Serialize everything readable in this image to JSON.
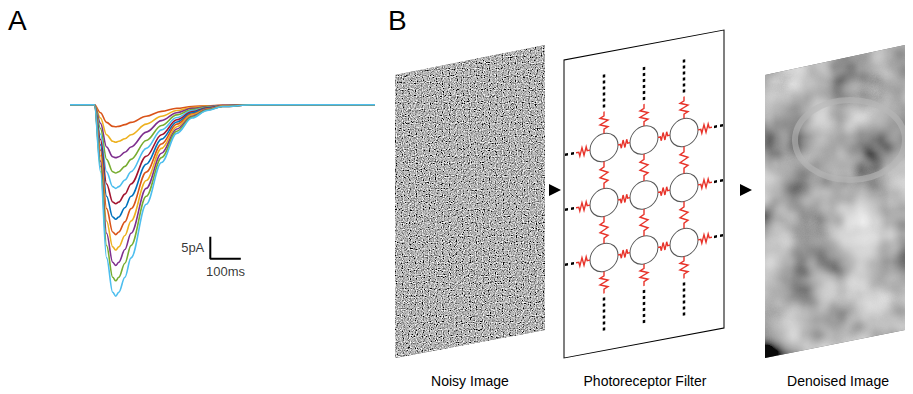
{
  "panel_labels": [
    "A",
    "B"
  ],
  "chart_data": {
    "type": "line",
    "tick_labels": false,
    "grid": false,
    "xlim": [
      0,
      1000
    ],
    "ylim": [
      -48,
      2
    ],
    "x": [
      0,
      80,
      100,
      120,
      140,
      150,
      160,
      180,
      200,
      250,
      300,
      350,
      400,
      450,
      500,
      600,
      1000
    ],
    "scale_bar": {
      "x": 100,
      "x_label": "100ms",
      "y": 5,
      "y_label": "5pA"
    },
    "series": [
      {
        "color": "#D95319",
        "values": [
          0,
          0,
          -1.8,
          -4,
          -4.9,
          -5,
          -4.9,
          -4.5,
          -4,
          -2.6,
          -1.5,
          -0.8,
          -0.4,
          -0.2,
          -0.1,
          0,
          0
        ]
      },
      {
        "color": "#EDB120",
        "values": [
          0,
          0,
          -3.0,
          -6.8,
          -8.3,
          -8.5,
          -8.3,
          -7.7,
          -6.8,
          -4.4,
          -2.6,
          -1.3,
          -0.6,
          -0.3,
          -0.1,
          0,
          0
        ]
      },
      {
        "color": "#7E2F8E",
        "values": [
          0,
          0,
          -4.2,
          -9.6,
          -11.8,
          -12,
          -11.8,
          -10.8,
          -9.6,
          -6.2,
          -3.6,
          -1.8,
          -0.8,
          -0.4,
          -0.1,
          0,
          0
        ]
      },
      {
        "color": "#77AC30",
        "values": [
          0,
          0,
          -5.4,
          -12.4,
          -15.2,
          -15.5,
          -15.2,
          -14.0,
          -12.4,
          -8.1,
          -4.7,
          -2.3,
          -1.1,
          -0.5,
          -0.2,
          0,
          0
        ]
      },
      {
        "color": "#4DBEEE",
        "values": [
          0,
          0,
          -6.7,
          -15.2,
          -18.6,
          -19,
          -18.6,
          -17.1,
          -15.2,
          -9.9,
          -5.7,
          -2.9,
          -1.3,
          -0.6,
          -0.2,
          0,
          0
        ]
      },
      {
        "color": "#A2142F",
        "values": [
          0,
          0,
          -7.9,
          -18,
          -22.1,
          -22.5,
          -22.1,
          -20.3,
          -18,
          -11.7,
          -6.8,
          -3.4,
          -1.6,
          -0.7,
          -0.2,
          0,
          0
        ]
      },
      {
        "color": "#0072BD",
        "values": [
          0,
          0,
          -9.1,
          -20.8,
          -25.5,
          -26,
          -25.5,
          -23.4,
          -20.8,
          -13.5,
          -7.8,
          -3.9,
          -1.8,
          -0.8,
          -0.3,
          0,
          0
        ]
      },
      {
        "color": "#D95319",
        "values": [
          0,
          0,
          -10.3,
          -23.6,
          -28.9,
          -29.5,
          -28.9,
          -26.6,
          -23.6,
          -15.3,
          -8.9,
          -4.4,
          -2.1,
          -0.9,
          -0.3,
          0,
          0
        ]
      },
      {
        "color": "#EDB120",
        "values": [
          0,
          0,
          -11.6,
          -26.4,
          -32.3,
          -33,
          -32.3,
          -29.7,
          -26.4,
          -17.2,
          -9.9,
          -5.0,
          -2.3,
          -1.0,
          -0.3,
          0,
          0
        ]
      },
      {
        "color": "#7E2F8E",
        "values": [
          0,
          0,
          -12.8,
          -29.2,
          -35.8,
          -36.5,
          -35.8,
          -32.9,
          -29.2,
          -19.0,
          -11.0,
          -5.5,
          -2.6,
          -1.1,
          -0.4,
          0,
          0
        ]
      },
      {
        "color": "#77AC30",
        "values": [
          0,
          0,
          -14,
          -32,
          -39.2,
          -40,
          -39.2,
          -36,
          -32,
          -20.8,
          -12,
          -6,
          -2.8,
          -1.2,
          -0.4,
          0,
          0
        ]
      },
      {
        "color": "#4DBEEE",
        "values": [
          0,
          0,
          -15.2,
          -34.8,
          -42.6,
          -43.5,
          -42.6,
          -39.2,
          -34.8,
          -22.6,
          -13.1,
          -6.5,
          -3.0,
          -1.3,
          -0.4,
          0,
          0
        ]
      }
    ]
  },
  "diagram": {
    "steps": [
      {
        "label": "Noisy Image"
      },
      {
        "label": "Photoreceptor Filter"
      },
      {
        "label": "Denoised Image"
      }
    ]
  }
}
